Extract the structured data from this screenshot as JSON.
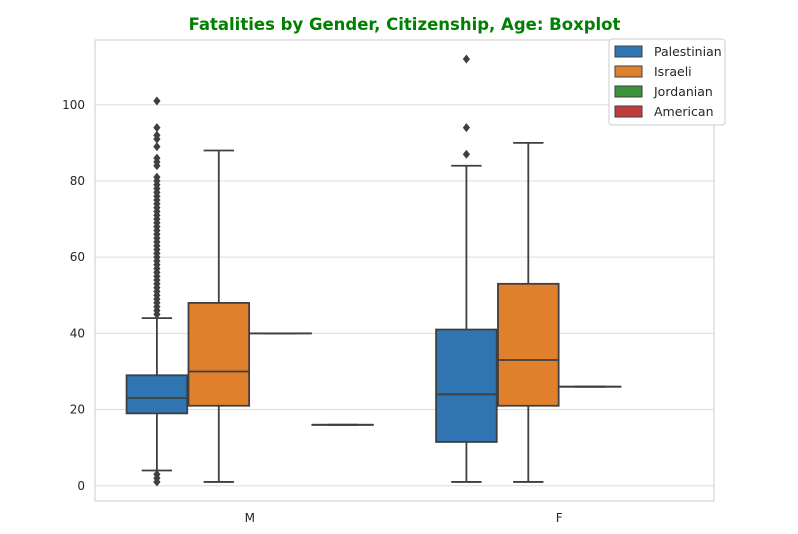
{
  "chart_data": {
    "type": "box",
    "title": "Fatalities by Gender, Citizenship, Age: Boxplot",
    "title_color": "#008000",
    "xlabel": "",
    "ylabel": "",
    "categories": [
      "M",
      "F"
    ],
    "ylim": [
      -4,
      117
    ],
    "yticks": [
      0,
      20,
      40,
      60,
      80,
      100
    ],
    "grid": true,
    "legend_position": "top-right",
    "series": [
      {
        "name": "Palestinian",
        "color": "#2E75B1",
        "boxes": [
          {
            "category": "M",
            "min": 4,
            "q1": 19,
            "median": 23,
            "q3": 29,
            "max": 44,
            "outliers": [
              1,
              2,
              3,
              45,
              46,
              47,
              48,
              49,
              50,
              51,
              52,
              53,
              54,
              55,
              56,
              57,
              58,
              59,
              60,
              61,
              62,
              63,
              64,
              65,
              66,
              67,
              68,
              69,
              70,
              71,
              72,
              73,
              74,
              75,
              76,
              77,
              78,
              79,
              80,
              81,
              84,
              85,
              86,
              89,
              91,
              92,
              94,
              101
            ]
          },
          {
            "category": "F",
            "min": 1,
            "q1": 11.5,
            "median": 24,
            "q3": 41,
            "max": 84,
            "outliers": [
              87,
              94,
              112
            ]
          }
        ]
      },
      {
        "name": "Israeli",
        "color": "#E1802C",
        "boxes": [
          {
            "category": "M",
            "min": 1,
            "q1": 21,
            "median": 30,
            "q3": 48,
            "max": 88,
            "outliers": []
          },
          {
            "category": "F",
            "min": 1,
            "q1": 21,
            "median": 33,
            "q3": 53,
            "max": 90,
            "outliers": []
          }
        ]
      },
      {
        "name": "Jordanian",
        "color": "#3A923A",
        "boxes": [
          {
            "category": "M",
            "min": 40,
            "q1": 40,
            "median": 40,
            "q3": 40,
            "max": 40,
            "outliers": []
          },
          {
            "category": "F",
            "min": 26,
            "q1": 26,
            "median": 26,
            "q3": 26,
            "max": 26,
            "outliers": []
          }
        ]
      },
      {
        "name": "American",
        "color": "#C03D3E",
        "boxes": [
          {
            "category": "M",
            "min": 16,
            "q1": 16,
            "median": 16,
            "q3": 16,
            "max": 16,
            "outliers": []
          }
        ]
      }
    ]
  }
}
